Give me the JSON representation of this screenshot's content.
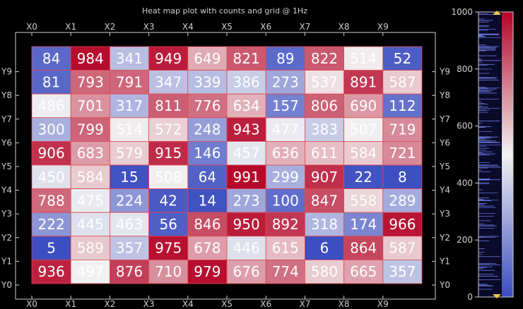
{
  "chart_data": {
    "type": "heatmap",
    "title": "Heat map plot with counts and grid @ 1Hz",
    "x_categories": [
      "X0",
      "X1",
      "X2",
      "X3",
      "X4",
      "X5",
      "X6",
      "X7",
      "X8",
      "X9"
    ],
    "y_categories": [
      "Y0",
      "Y1",
      "Y2",
      "Y3",
      "Y4",
      "Y5",
      "Y6",
      "Y7",
      "Y8",
      "Y9"
    ],
    "rows_top_to_bottom": [
      [
        84,
        984,
        341,
        949,
        649,
        821,
        89,
        822,
        514,
        52
      ],
      [
        81,
        793,
        791,
        347,
        339,
        386,
        273,
        537,
        891,
        587
      ],
      [
        486,
        701,
        317,
        811,
        776,
        634,
        157,
        806,
        690,
        112
      ],
      [
        300,
        799,
        514,
        572,
        248,
        943,
        477,
        383,
        507,
        719
      ],
      [
        906,
        683,
        579,
        915,
        146,
        457,
        636,
        611,
        584,
        721
      ],
      [
        450,
        584,
        15,
        508,
        64,
        991,
        299,
        907,
        22,
        8
      ],
      [
        788,
        475,
        224,
        42,
        14,
        273,
        100,
        847,
        558,
        289
      ],
      [
        222,
        445,
        463,
        56,
        846,
        950,
        892,
        318,
        174,
        966
      ],
      [
        5,
        589,
        357,
        975,
        678,
        446,
        615,
        6,
        864,
        587
      ],
      [
        936,
        497,
        876,
        710,
        979,
        676,
        774,
        580,
        665,
        357
      ]
    ],
    "value_range": [
      0,
      1000
    ],
    "colorbar_ticks": [
      0,
      200,
      400,
      600,
      800,
      1000
    ],
    "colormap": {
      "low": "#3b4cc0",
      "mid": "#f2f2f2",
      "high": "#b40426"
    },
    "grid": true,
    "colorbar_position": "right"
  }
}
